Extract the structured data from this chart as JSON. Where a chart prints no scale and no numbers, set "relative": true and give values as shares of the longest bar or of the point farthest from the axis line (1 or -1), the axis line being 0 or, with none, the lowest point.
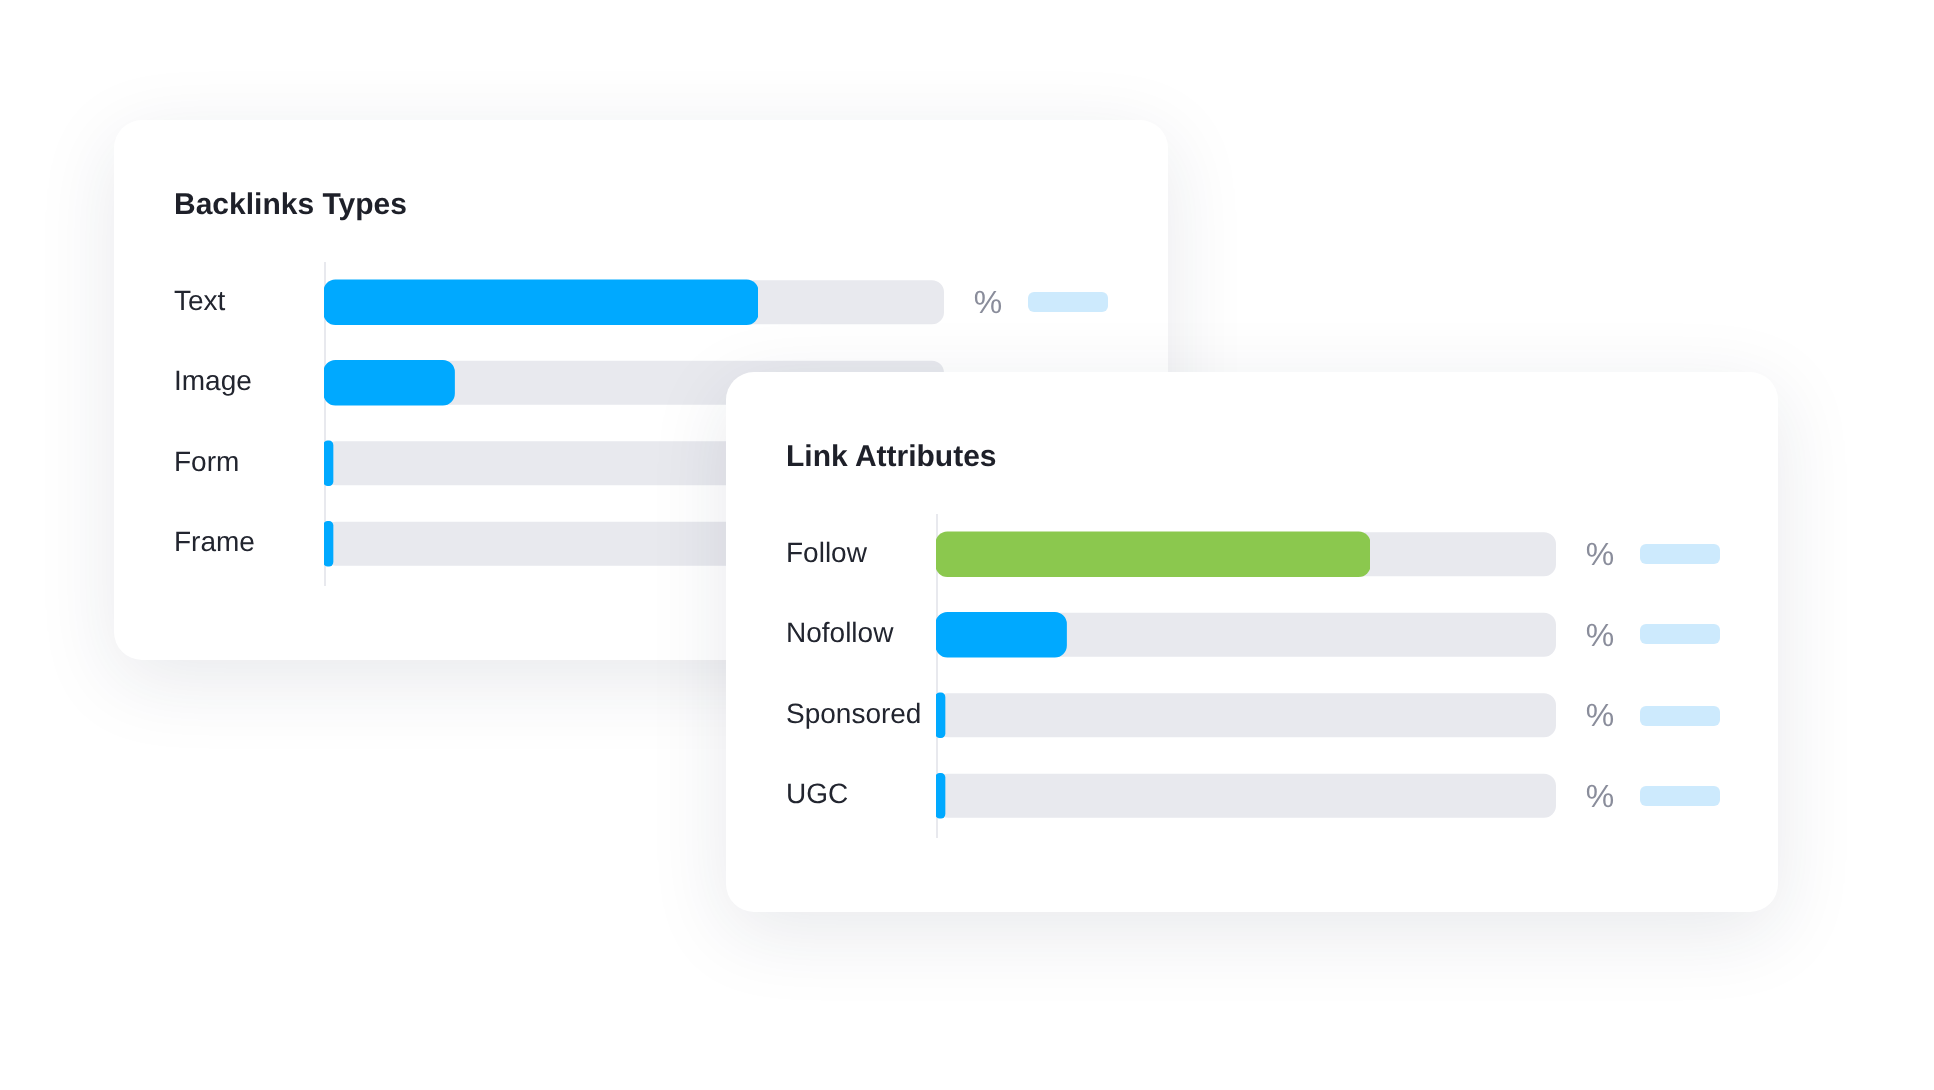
{
  "chart_data": [
    {
      "type": "bar",
      "orientation": "horizontal",
      "relative": true,
      "title": "Backlinks Types",
      "categories": [
        "Text",
        "Image",
        "Form",
        "Frame"
      ],
      "values": [
        1,
        0.3,
        0.02,
        0.02
      ],
      "color": "#00a9ff",
      "annotations": [
        "%"
      ]
    },
    {
      "type": "bar",
      "orientation": "horizontal",
      "relative": true,
      "title": "Link Attributes",
      "categories": [
        "Follow",
        "Nofollow",
        "Sponsored",
        "UGC"
      ],
      "values": [
        1,
        0.3,
        0.02,
        0.02
      ],
      "colors": [
        "#8bc84e",
        "#00a9ff",
        "#00a9ff",
        "#00a9ff"
      ],
      "annotations": [
        "%",
        "%",
        "%",
        "%"
      ]
    }
  ]
}
